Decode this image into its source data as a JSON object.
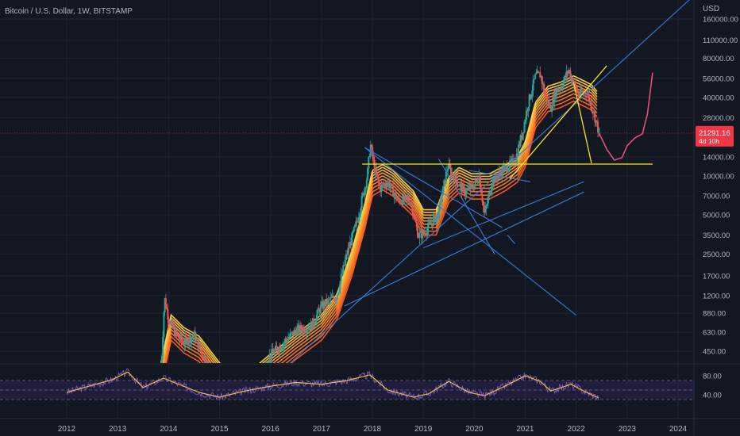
{
  "header": {
    "title": "Bitcoin / U.S. Dollar, 1W, BITSTAMP"
  },
  "colors": {
    "background": "#131722",
    "grid": "#1f2433",
    "axis_text": "#b2b5be",
    "candle_up": "#26a69a",
    "candle_down": "#ef5350",
    "ribbon_outer": "#ff5a1f",
    "ribbon_inner": "#ffd54a",
    "trendline_blue": "#3a7bd5",
    "trendline_yellow": "#f5e61e",
    "projection": "#e0507a",
    "price_badge": "#f23645",
    "rsi_line": "#7e57c2",
    "rsi_ma": "#f5c542",
    "rsi_band": "#2a2350"
  },
  "price_axis": {
    "currency": "USD",
    "ticks": [
      "160000.00",
      "110000.00",
      "80000.00",
      "56000.00",
      "40000.00",
      "28000.00",
      "14000.00",
      "10000.00",
      "7000.00",
      "5000.00",
      "3500.00",
      "2500.00",
      "1700.00",
      "1200.00",
      "880.00",
      "630.00",
      "450.00"
    ],
    "tick_values": [
      160000,
      110000,
      80000,
      56000,
      40000,
      28000,
      14000,
      10000,
      7000,
      5000,
      3500,
      2500,
      1700,
      1200,
      880,
      630,
      450
    ],
    "current_price": "21291.16",
    "current_price_value": 21291.16,
    "countdown": "4d 10h"
  },
  "time_axis": {
    "labels": [
      "2012",
      "2013",
      "2014",
      "2015",
      "2016",
      "2017",
      "2018",
      "2019",
      "2020",
      "2021",
      "2022",
      "2023",
      "2024"
    ],
    "years": [
      2012,
      2013,
      2014,
      2015,
      2016,
      2017,
      2018,
      2019,
      2020,
      2021,
      2022,
      2023,
      2024
    ]
  },
  "rsi_axis": {
    "ticks": [
      "80.00",
      "40.00"
    ],
    "tick_values": [
      80,
      40
    ],
    "band": [
      30,
      70
    ]
  },
  "chart_data": {
    "type": "line",
    "title": "Bitcoin / U.S. Dollar, 1W, BITSTAMP",
    "scale": "log",
    "ylim": [
      300,
      260000
    ],
    "xlim": [
      2011.6,
      2024.4
    ],
    "price_path": [
      [
        2013.85,
        300
      ],
      [
        2013.92,
        1150
      ],
      [
        2014.0,
        800
      ],
      [
        2014.15,
        600
      ],
      [
        2014.3,
        520
      ],
      [
        2014.5,
        600
      ],
      [
        2014.7,
        400
      ],
      [
        2015.0,
        250
      ],
      [
        2015.5,
        250
      ],
      [
        2015.9,
        350
      ],
      [
        2016.0,
        420
      ],
      [
        2016.5,
        650
      ],
      [
        2016.8,
        700
      ],
      [
        2017.0,
        1000
      ],
      [
        2017.3,
        1200
      ],
      [
        2017.5,
        2500
      ],
      [
        2017.7,
        4500
      ],
      [
        2017.9,
        10000
      ],
      [
        2017.96,
        17500
      ],
      [
        2018.05,
        11000
      ],
      [
        2018.15,
        8000
      ],
      [
        2018.3,
        9000
      ],
      [
        2018.5,
        6500
      ],
      [
        2018.75,
        6500
      ],
      [
        2018.9,
        3500
      ],
      [
        2019.0,
        3600
      ],
      [
        2019.3,
        5200
      ],
      [
        2019.48,
        12000
      ],
      [
        2019.55,
        10500
      ],
      [
        2019.8,
        7500
      ],
      [
        2020.0,
        8500
      ],
      [
        2020.1,
        10000
      ],
      [
        2020.2,
        5000
      ],
      [
        2020.35,
        9000
      ],
      [
        2020.55,
        11000
      ],
      [
        2020.8,
        13000
      ],
      [
        2020.95,
        22000
      ],
      [
        2021.05,
        35000
      ],
      [
        2021.2,
        58000
      ],
      [
        2021.3,
        60000
      ],
      [
        2021.4,
        40000
      ],
      [
        2021.5,
        33000
      ],
      [
        2021.6,
        45000
      ],
      [
        2021.7,
        48000
      ],
      [
        2021.85,
        65000
      ],
      [
        2021.92,
        55000
      ],
      [
        2022.05,
        42000
      ],
      [
        2022.2,
        45000
      ],
      [
        2022.35,
        30000
      ],
      [
        2022.45,
        21291
      ]
    ],
    "ribbon_center": [
      [
        2013.85,
        300
      ],
      [
        2014.05,
        700
      ],
      [
        2014.3,
        560
      ],
      [
        2014.6,
        480
      ],
      [
        2015.0,
        300
      ],
      [
        2015.5,
        240
      ],
      [
        2016.0,
        350
      ],
      [
        2016.5,
        500
      ],
      [
        2017.0,
        700
      ],
      [
        2017.3,
        1000
      ],
      [
        2017.6,
        2200
      ],
      [
        2017.85,
        5000
      ],
      [
        2018.0,
        9000
      ],
      [
        2018.2,
        10000
      ],
      [
        2018.4,
        9000
      ],
      [
        2018.6,
        7500
      ],
      [
        2018.8,
        6300
      ],
      [
        2019.0,
        4500
      ],
      [
        2019.25,
        4500
      ],
      [
        2019.5,
        8000
      ],
      [
        2019.7,
        9500
      ],
      [
        2019.95,
        8500
      ],
      [
        2020.3,
        8500
      ],
      [
        2020.6,
        9800
      ],
      [
        2020.85,
        11500
      ],
      [
        2021.0,
        15000
      ],
      [
        2021.2,
        30000
      ],
      [
        2021.45,
        40000
      ],
      [
        2021.7,
        43000
      ],
      [
        2021.95,
        48000
      ],
      [
        2022.15,
        44000
      ],
      [
        2022.3,
        41000
      ],
      [
        2022.42,
        36000
      ]
    ],
    "trendlines_blue": [
      [
        [
          2017.85,
          16500
        ],
        [
          2020.55,
          4000
        ]
      ],
      [
        [
          2017.85,
          16500
        ],
        [
          2022.0,
          850
        ]
      ],
      [
        [
          2016.15,
          300
        ],
        [
          2024.4,
          260000
        ]
      ],
      [
        [
          2017.45,
          1000
        ],
        [
          2022.15,
          7500
        ]
      ],
      [
        [
          2019.0,
          2800
        ],
        [
          2022.15,
          9000
        ]
      ],
      [
        [
          2019.9,
          11000
        ],
        [
          2021.1,
          9000
        ]
      ],
      [
        [
          2019.3,
          13500
        ],
        [
          2020.4,
          2500
        ]
      ],
      [
        [
          2020.65,
          3500
        ],
        [
          2020.8,
          3000
        ]
      ]
    ],
    "trendlines_yellow": [
      [
        [
          2017.8,
          12300
        ],
        [
          2023.5,
          12300
        ]
      ],
      [
        [
          2020.7,
          9500
        ],
        [
          2022.6,
          70000
        ]
      ],
      [
        [
          2021.95,
          52000
        ],
        [
          2022.3,
          12500
        ]
      ]
    ],
    "projection": [
      [
        2022.45,
        21291
      ],
      [
        2022.6,
        16000
      ],
      [
        2022.75,
        13200
      ],
      [
        2022.9,
        13800
      ],
      [
        2023.0,
        17000
      ],
      [
        2023.15,
        19500
      ],
      [
        2023.3,
        21000
      ],
      [
        2023.4,
        30000
      ],
      [
        2023.5,
        62000
      ]
    ],
    "rsi": [
      [
        2012.0,
        45
      ],
      [
        2012.5,
        60
      ],
      [
        2012.9,
        72
      ],
      [
        2013.2,
        88
      ],
      [
        2013.5,
        55
      ],
      [
        2013.9,
        75
      ],
      [
        2014.2,
        62
      ],
      [
        2014.6,
        45
      ],
      [
        2015.0,
        35
      ],
      [
        2015.5,
        48
      ],
      [
        2016.0,
        58
      ],
      [
        2016.5,
        66
      ],
      [
        2017.0,
        62
      ],
      [
        2017.5,
        70
      ],
      [
        2017.95,
        82
      ],
      [
        2018.3,
        50
      ],
      [
        2018.8,
        35
      ],
      [
        2019.1,
        42
      ],
      [
        2019.5,
        68
      ],
      [
        2019.9,
        45
      ],
      [
        2020.2,
        38
      ],
      [
        2020.6,
        58
      ],
      [
        2021.0,
        80
      ],
      [
        2021.3,
        68
      ],
      [
        2021.5,
        48
      ],
      [
        2021.9,
        62
      ],
      [
        2022.2,
        45
      ],
      [
        2022.45,
        33
      ]
    ]
  }
}
